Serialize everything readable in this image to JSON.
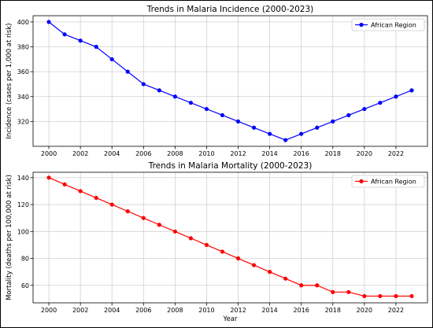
{
  "chart_data": [
    {
      "type": "line",
      "title": "Trends in Malaria Incidence (2000-2023)",
      "xlabel": "",
      "ylabel": "Incidence (cases per 1,000 at risk)",
      "x": [
        2000,
        2001,
        2002,
        2003,
        2004,
        2005,
        2006,
        2007,
        2008,
        2009,
        2010,
        2011,
        2012,
        2013,
        2014,
        2015,
        2016,
        2017,
        2018,
        2019,
        2020,
        2021,
        2022,
        2023
      ],
      "series": [
        {
          "name": "African Region",
          "color": "#0000ff",
          "values": [
            400,
            390,
            385,
            380,
            370,
            360,
            350,
            345,
            340,
            335,
            330,
            325,
            320,
            315,
            310,
            305,
            310,
            315,
            320,
            325,
            330,
            335,
            340,
            345
          ]
        }
      ],
      "xlim": [
        1999,
        2024
      ],
      "ylim": [
        300,
        405
      ],
      "xticks": [
        2000,
        2002,
        2004,
        2006,
        2008,
        2010,
        2012,
        2014,
        2016,
        2018,
        2020,
        2022
      ],
      "yticks": [
        320,
        340,
        360,
        380,
        400
      ],
      "grid": true,
      "legend_position": "upper right"
    },
    {
      "type": "line",
      "title": "Trends in Malaria Mortality (2000-2023)",
      "xlabel": "Year",
      "ylabel": "Mortality (deaths per 100,000 at risk)",
      "x": [
        2000,
        2001,
        2002,
        2003,
        2004,
        2005,
        2006,
        2007,
        2008,
        2009,
        2010,
        2011,
        2012,
        2013,
        2014,
        2015,
        2016,
        2017,
        2018,
        2019,
        2020,
        2021,
        2022,
        2023
      ],
      "series": [
        {
          "name": "African Region",
          "color": "#ff0000",
          "values": [
            140,
            135,
            130,
            125,
            120,
            115,
            110,
            105,
            100,
            95,
            90,
            85,
            80,
            75,
            70,
            65,
            60,
            60,
            55,
            55,
            52,
            52,
            52,
            52
          ]
        }
      ],
      "xlim": [
        1999,
        2024
      ],
      "ylim": [
        47,
        144
      ],
      "xticks": [
        2000,
        2002,
        2004,
        2006,
        2008,
        2010,
        2012,
        2014,
        2016,
        2018,
        2020,
        2022
      ],
      "yticks": [
        60,
        80,
        100,
        120,
        140
      ],
      "grid": true,
      "legend_position": "upper right"
    }
  ]
}
